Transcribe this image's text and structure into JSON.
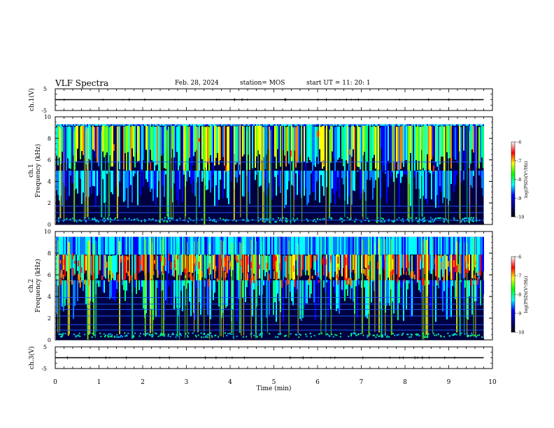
{
  "header": {
    "title": "VLF Spectra",
    "date": "Feb. 28, 2024",
    "station": "station= MOS",
    "start": "start  UT =   11: 20: 1"
  },
  "colorbar": {
    "label": "log(PSD)(V²/Hz)",
    "ticks": [
      "-6",
      "-7",
      "-8",
      "-9",
      "-10"
    ],
    "colors": [
      "#ffffff",
      "#ff0000",
      "#ffff00",
      "#00ff00",
      "#00ffff",
      "#0000ff",
      "#000080",
      "#000000"
    ]
  },
  "chart_data": [
    {
      "type": "line",
      "ylabel": "ch.1(V)",
      "ylim": [
        -5,
        5
      ],
      "yticks": [
        "5",
        "-5"
      ],
      "xlim": [
        0,
        10
      ],
      "series": [
        {
          "values_description_baseline": 0
        }
      ]
    },
    {
      "type": "heatmap",
      "ylabel": "ch.1",
      "ylabel2": "Frequency (kHz)",
      "ylim": [
        0,
        10
      ],
      "yticks": [
        "10",
        "8",
        "6",
        "4",
        "2",
        "0"
      ],
      "xlim": [
        0,
        9.8
      ],
      "zlim": [
        -10,
        -6
      ],
      "band_top_khz": 9.3,
      "dominant_band_khz": [
        5,
        9.3
      ],
      "horizontal_lines_khz": [
        0.4,
        1.1,
        1.7,
        5.8
      ]
    },
    {
      "type": "heatmap",
      "ylabel": "ch.2",
      "ylabel2": "Frequency (kHz)",
      "ylim": [
        0,
        10
      ],
      "yticks": [
        "10",
        "8",
        "6",
        "4",
        "2",
        "0"
      ],
      "xlim": [
        0,
        9.8
      ],
      "zlim": [
        -10,
        -6
      ],
      "band_top_khz": 9.5,
      "dominant_band_khz": [
        5.5,
        8
      ],
      "horizontal_lines_khz": [
        0.9,
        1.4,
        2.2,
        2.8,
        3.3,
        3.9
      ]
    },
    {
      "type": "line",
      "ylabel": "ch.3(V)",
      "ylim": [
        -5,
        5
      ],
      "yticks": [
        "5",
        "-5"
      ],
      "xlim": [
        0,
        10
      ],
      "series": [
        {
          "values_description_baseline": 0
        }
      ]
    }
  ],
  "xaxis": {
    "label": "Time (min)",
    "ticks": [
      "0",
      "1",
      "2",
      "3",
      "4",
      "5",
      "6",
      "7",
      "8",
      "9",
      "10"
    ]
  }
}
